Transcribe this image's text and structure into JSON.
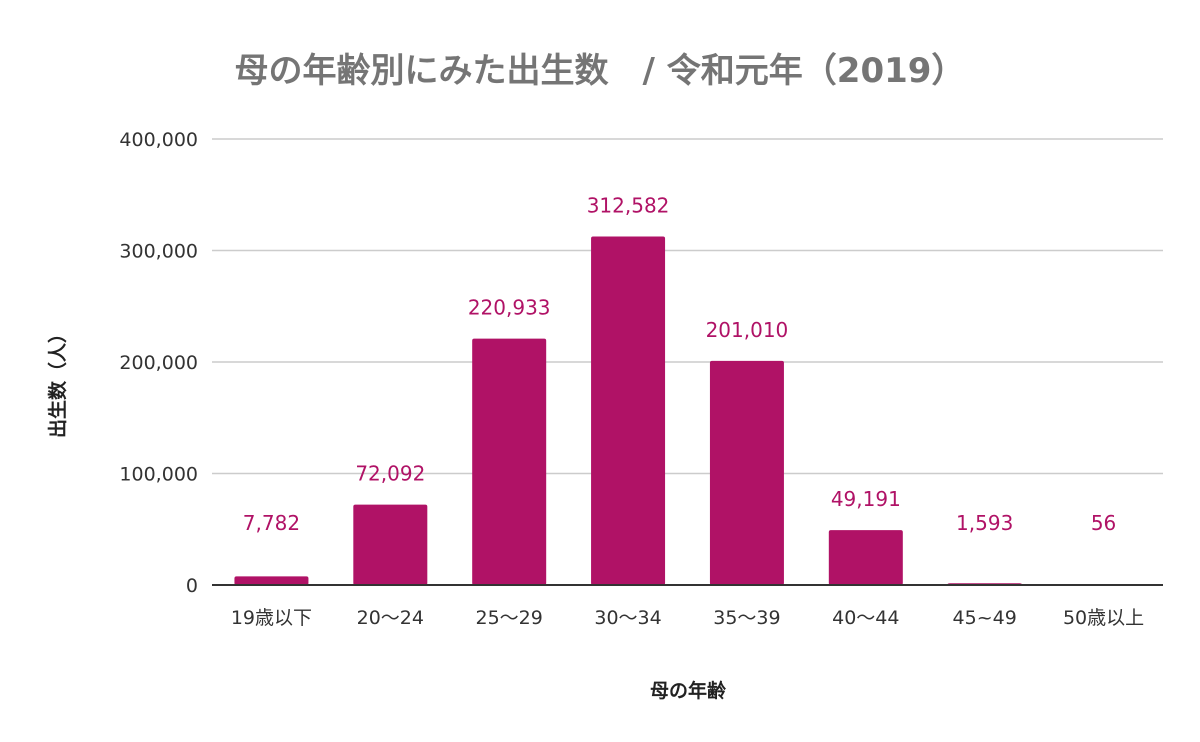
{
  "chart_data": {
    "type": "bar",
    "title": "母の年齢別にみた出生数　/ 令和元年（2019）",
    "xlabel": "母の年齢",
    "ylabel": "出生数（人）",
    "categories": [
      "19歳以下",
      "20～24",
      "25～29",
      "30～34",
      "35～39",
      "40～44",
      "45~49",
      "50歳以上"
    ],
    "values": [
      7782,
      72092,
      220933,
      312582,
      201010,
      49191,
      1593,
      56
    ],
    "data_labels": [
      "7,782",
      "72,092",
      "220,933",
      "312,582",
      "201,010",
      "49,191",
      "1,593",
      "56"
    ],
    "ylim": [
      0,
      400000
    ],
    "yticks": [
      0,
      100000,
      200000,
      300000,
      400000
    ],
    "ytick_labels": [
      "0",
      "100,000",
      "200,000",
      "300,000",
      "400,000"
    ],
    "grid": true,
    "legend": "none",
    "colors": {
      "bar": "#B01266",
      "data_label": "#B01266",
      "title": "#757575",
      "tick_text": "#333333",
      "axis_title": "#222222",
      "grid": "#cccccc",
      "baseline": "#333333"
    }
  }
}
